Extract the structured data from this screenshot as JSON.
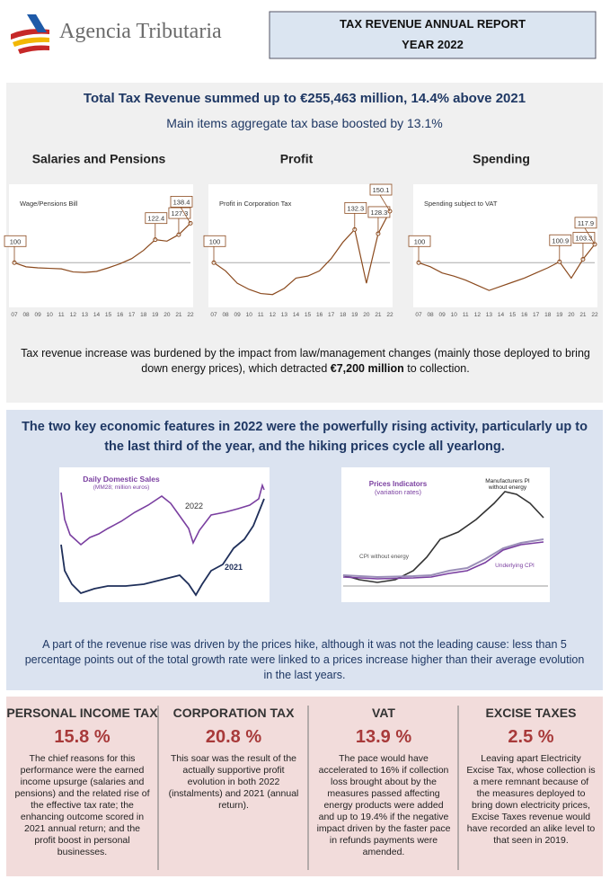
{
  "header": {
    "logo_text": "Agencia Tributaria",
    "report_title": "TAX REVENUE ANNUAL REPORT",
    "year": "YEAR 2022"
  },
  "section1": {
    "headline": "Total Tax Revenue summed up to €255,463 million, 14.4% above 2021",
    "subheadline": "Main items aggregate tax base boosted by 13.1%",
    "charts": [
      {
        "type": "line",
        "heading": "Salaries and Pensions",
        "label": "Wage/Pensions Bill",
        "color": "#8b4a1e",
        "categories": [
          "07",
          "08",
          "09",
          "10",
          "11",
          "12",
          "13",
          "14",
          "15",
          "16",
          "17",
          "18",
          "19",
          "20",
          "21",
          "22"
        ],
        "values": [
          100,
          96,
          95,
          94.5,
          94,
          91,
          90.5,
          91.5,
          95,
          99,
          104,
          112,
          122.4,
          121,
          127.3,
          138.4
        ],
        "value_labels": [
          "100",
          null,
          null,
          null,
          null,
          null,
          null,
          null,
          null,
          null,
          null,
          null,
          "122.4",
          null,
          "127.3",
          "138.4"
        ],
        "ylim": [
          60,
          165
        ]
      },
      {
        "type": "line",
        "heading": "Profit",
        "label": "Profit in Corporation Tax",
        "color": "#8b4a1e",
        "categories": [
          "07",
          "08",
          "09",
          "10",
          "11",
          "12",
          "13",
          "14",
          "15",
          "16",
          "17",
          "18",
          "19",
          "20",
          "21",
          "22"
        ],
        "values": [
          100,
          92,
          80,
          74,
          70,
          69,
          75,
          85,
          87,
          92,
          104,
          120,
          132.3,
          80,
          128.3,
          150.1
        ],
        "value_labels": [
          "100",
          null,
          null,
          null,
          null,
          null,
          null,
          null,
          null,
          null,
          null,
          null,
          "132.3",
          null,
          "128.3",
          "150.1"
        ],
        "ylim": [
          60,
          165
        ]
      },
      {
        "type": "line",
        "heading": "Spending",
        "label": "Spending subject to VAT",
        "color": "#8b4a1e",
        "categories": [
          "07",
          "08",
          "09",
          "10",
          "11",
          "12",
          "13",
          "14",
          "15",
          "16",
          "17",
          "18",
          "19",
          "20",
          "21",
          "22"
        ],
        "values": [
          100,
          96,
          90,
          87,
          83,
          78,
          73,
          77,
          81,
          85,
          90,
          95,
          100.9,
          85,
          103.3,
          117.9
        ],
        "value_labels": [
          "100",
          null,
          null,
          null,
          null,
          null,
          null,
          null,
          null,
          null,
          null,
          null,
          "100.9",
          null,
          "103.3",
          "117.9"
        ],
        "ylim": [
          60,
          165
        ]
      }
    ],
    "note_before": "Tax revenue increase was burdened by the impact from law/management changes (mainly those deployed to bring down energy prices), which detracted ",
    "note_bold": "€7,200 million",
    "note_after": " to collection."
  },
  "section2": {
    "headline": "The two key economic features in 2022 were the powerfully rising activity, particularly up to the last third of the year, and the hiking prices cycle all yearlong.",
    "sales_title": "Daily Domestic Sales",
    "sales_subtitle": "(MM28; million euros)",
    "sales_2022": "2022",
    "sales_2021": "2021",
    "prices_title": "Prices Indicators",
    "prices_subtitle": "(variation rates)",
    "prices_manufacturers": "Manufacturers PI without energy",
    "prices_cpi": "CPI without energy",
    "prices_underlying": "Underlying CPI",
    "note": "A part of the revenue rise was driven by the prices hike, although it was not the leading cause: less than 5 percentage points out of the total growth rate were linked to a prices increase higher than their average evolution in the last years."
  },
  "taxes": [
    {
      "title": "PERSONAL INCOME TAX",
      "rate": "15.8 %",
      "text": "The chief reasons for this performance were the earned income upsurge (salaries and pensions) and the related rise of the effective tax rate; the enhancing outcome scored in 2021 annual return; and the profit boost in personal businesses."
    },
    {
      "title": "CORPORATION TAX",
      "rate": "20.8 %",
      "text": "This soar was the result of the actually supportive profit evolution in both 2022 (instalments) and 2021 (annual return)."
    },
    {
      "title": "VAT",
      "rate": "13.9 %",
      "text": "The pace would have accelerated to 16% if collection loss brought about by the measures passed affecting energy products were added and up to 19.4% if the negative impact driven by the faster pace in refunds payments were amended."
    },
    {
      "title": "EXCISE TAXES",
      "rate": "2.5 %",
      "text": "Leaving apart Electricity Excise Tax, whose collection is a mere remnant because of the measures deployed to bring down electricity prices, Excise Taxes revenue would have recorded an alike level to that seen in 2019."
    }
  ]
}
